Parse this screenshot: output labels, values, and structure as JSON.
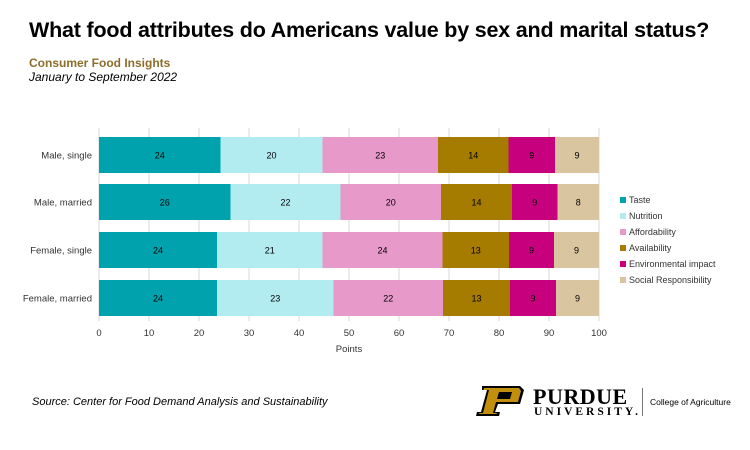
{
  "header": {
    "title": "What food attributes do Americans value by sex and marital status?",
    "subtitle": "Consumer Food Insights",
    "date_range": "January to September 2022"
  },
  "footer": {
    "source": "Source:  Center for Food Demand Analysis and Sustainability",
    "logo": {
      "wordmark": "PURDUE",
      "university": "UNIVERSITY.",
      "college": "College of Agriculture"
    }
  },
  "chart_data": {
    "type": "bar",
    "orientation": "horizontal",
    "stacked": true,
    "categories": [
      "Male, single",
      "Male, married",
      "Female, single",
      "Female, married"
    ],
    "xlabel": "Points",
    "xlim": [
      0,
      100
    ],
    "xticks": [
      0,
      10,
      20,
      30,
      40,
      50,
      60,
      70,
      80,
      90,
      100
    ],
    "grid": true,
    "legend_position": "right",
    "series": [
      {
        "name": "Taste",
        "color": "#00a3ad",
        "values": [
          24.3,
          26.3,
          23.6,
          23.6
        ],
        "labels": [
          "24",
          "26",
          "24",
          "24"
        ]
      },
      {
        "name": "Nutrition",
        "color": "#b2ebf0",
        "values": [
          20.4,
          22.0,
          21.1,
          23.3
        ],
        "labels": [
          "20",
          "22",
          "21",
          "23"
        ]
      },
      {
        "name": "Affordability",
        "color": "#e799c9",
        "values": [
          23.1,
          20.1,
          24.0,
          21.9
        ],
        "labels": [
          "23",
          "20",
          "24",
          "22"
        ]
      },
      {
        "name": "Availability",
        "color": "#a67c00",
        "values": [
          14.1,
          14.2,
          13.3,
          13.4
        ],
        "labels": [
          "14",
          "14",
          "13",
          "13"
        ]
      },
      {
        "name": "Environmental impact",
        "color": "#c7007d",
        "values": [
          9.3,
          9.1,
          9.0,
          9.2
        ],
        "labels": [
          "9",
          "9",
          "9",
          "9"
        ]
      },
      {
        "name": "Social Responsibility",
        "color": "#d9c6a0",
        "values": [
          8.8,
          8.3,
          9.0,
          8.6
        ],
        "labels": [
          "9",
          "8",
          "9",
          "9"
        ]
      }
    ]
  }
}
